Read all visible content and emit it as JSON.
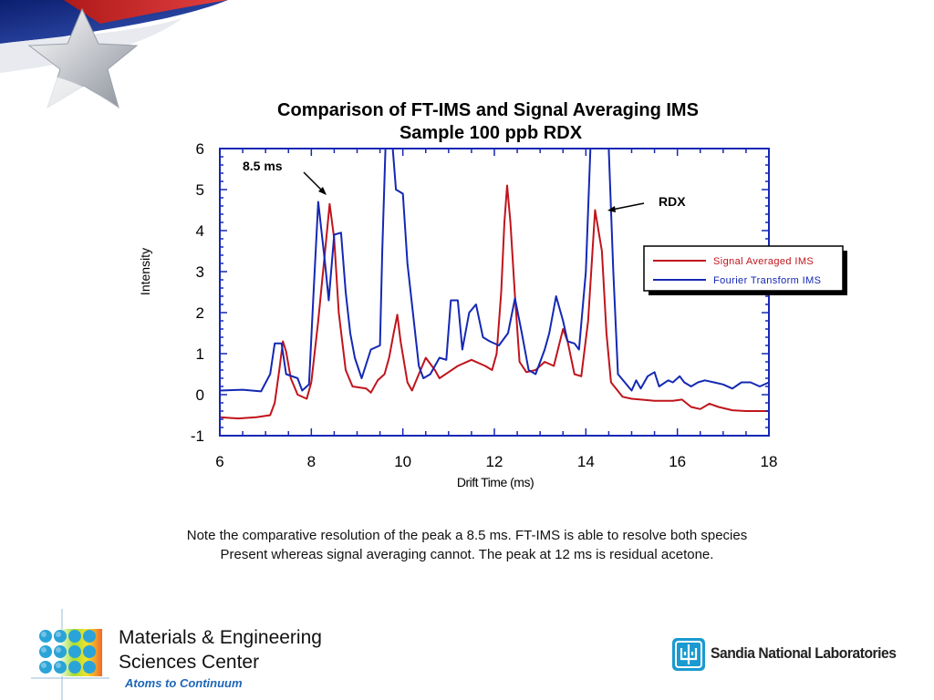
{
  "chart_data": {
    "type": "line",
    "title": "Comparison of FT-IMS and Signal Averaging IMS",
    "subtitle": "Sample 100 ppb RDX",
    "xlabel": "Drift Time (ms)",
    "ylabel": "Intensity",
    "xlim": [
      6,
      18
    ],
    "ylim": [
      -1,
      6
    ],
    "x_ticks": [
      "6",
      "8",
      "10",
      "12",
      "14",
      "16",
      "18"
    ],
    "y_ticks": [
      "6",
      "5",
      "4",
      "3",
      "2",
      "1",
      "0",
      "-1"
    ],
    "grid": false,
    "legend_position": "right",
    "annotations": [
      {
        "text": "8.5 ms",
        "x": 8.4,
        "y": 4.7
      },
      {
        "text": "RDX",
        "x": 14.5,
        "y": 4.6
      }
    ],
    "series": [
      {
        "name": "Signal Averaged IMS",
        "color": "#c0141c",
        "points": [
          [
            6.0,
            -0.55
          ],
          [
            6.4,
            -0.58
          ],
          [
            6.8,
            -0.55
          ],
          [
            7.1,
            -0.5
          ],
          [
            7.2,
            -0.2
          ],
          [
            7.3,
            0.6
          ],
          [
            7.38,
            1.3
          ],
          [
            7.45,
            1.05
          ],
          [
            7.55,
            0.4
          ],
          [
            7.7,
            0.0
          ],
          [
            7.9,
            -0.1
          ],
          [
            8.0,
            0.3
          ],
          [
            8.15,
            1.8
          ],
          [
            8.3,
            3.5
          ],
          [
            8.4,
            4.65
          ],
          [
            8.5,
            3.8
          ],
          [
            8.6,
            2.0
          ],
          [
            8.75,
            0.6
          ],
          [
            8.9,
            0.2
          ],
          [
            9.2,
            0.15
          ],
          [
            9.3,
            0.05
          ],
          [
            9.45,
            0.35
          ],
          [
            9.6,
            0.5
          ],
          [
            9.7,
            0.9
          ],
          [
            9.8,
            1.5
          ],
          [
            9.88,
            1.95
          ],
          [
            9.95,
            1.3
          ],
          [
            10.1,
            0.3
          ],
          [
            10.2,
            0.1
          ],
          [
            10.35,
            0.5
          ],
          [
            10.5,
            0.9
          ],
          [
            10.7,
            0.6
          ],
          [
            10.8,
            0.4
          ],
          [
            11.0,
            0.55
          ],
          [
            11.2,
            0.7
          ],
          [
            11.5,
            0.85
          ],
          [
            11.8,
            0.7
          ],
          [
            11.95,
            0.6
          ],
          [
            12.05,
            1.0
          ],
          [
            12.15,
            2.5
          ],
          [
            12.22,
            4.2
          ],
          [
            12.28,
            5.1
          ],
          [
            12.35,
            4.2
          ],
          [
            12.45,
            2.4
          ],
          [
            12.55,
            0.8
          ],
          [
            12.7,
            0.55
          ],
          [
            12.9,
            0.6
          ],
          [
            13.1,
            0.8
          ],
          [
            13.3,
            0.7
          ],
          [
            13.5,
            1.6
          ],
          [
            13.6,
            1.3
          ],
          [
            13.75,
            0.5
          ],
          [
            13.9,
            0.45
          ],
          [
            14.05,
            1.8
          ],
          [
            14.2,
            4.5
          ],
          [
            14.35,
            3.5
          ],
          [
            14.45,
            1.5
          ],
          [
            14.55,
            0.3
          ],
          [
            14.8,
            -0.05
          ],
          [
            15.0,
            -0.1
          ],
          [
            15.2,
            -0.12
          ],
          [
            15.5,
            -0.15
          ],
          [
            15.9,
            -0.15
          ],
          [
            16.1,
            -0.12
          ],
          [
            16.3,
            -0.3
          ],
          [
            16.5,
            -0.35
          ],
          [
            16.7,
            -0.22
          ],
          [
            16.9,
            -0.3
          ],
          [
            17.2,
            -0.38
          ],
          [
            17.5,
            -0.4
          ],
          [
            18.0,
            -0.4
          ]
        ]
      },
      {
        "name": "Fourier Transform IMS",
        "color": "#1428b4",
        "points": [
          [
            6.0,
            0.1
          ],
          [
            6.5,
            0.12
          ],
          [
            6.9,
            0.08
          ],
          [
            7.1,
            0.5
          ],
          [
            7.2,
            1.25
          ],
          [
            7.35,
            1.25
          ],
          [
            7.45,
            0.5
          ],
          [
            7.7,
            0.4
          ],
          [
            7.8,
            0.1
          ],
          [
            7.95,
            0.25
          ],
          [
            8.05,
            2.5
          ],
          [
            8.15,
            4.7
          ],
          [
            8.3,
            3.2
          ],
          [
            8.38,
            2.3
          ],
          [
            8.5,
            3.9
          ],
          [
            8.65,
            3.95
          ],
          [
            8.75,
            2.5
          ],
          [
            8.85,
            1.5
          ],
          [
            8.95,
            0.9
          ],
          [
            9.1,
            0.4
          ],
          [
            9.3,
            1.1
          ],
          [
            9.5,
            1.2
          ],
          [
            9.55,
            3.5
          ],
          [
            9.62,
            6.0
          ],
          [
            9.78,
            6.0
          ],
          [
            9.85,
            5.0
          ],
          [
            10.0,
            4.9
          ],
          [
            10.1,
            3.2
          ],
          [
            10.2,
            2.2
          ],
          [
            10.35,
            0.7
          ],
          [
            10.45,
            0.4
          ],
          [
            10.6,
            0.5
          ],
          [
            10.8,
            0.9
          ],
          [
            10.95,
            0.85
          ],
          [
            11.05,
            2.3
          ],
          [
            11.2,
            2.3
          ],
          [
            11.3,
            1.1
          ],
          [
            11.45,
            2.0
          ],
          [
            11.6,
            2.2
          ],
          [
            11.75,
            1.4
          ],
          [
            11.9,
            1.3
          ],
          [
            12.1,
            1.2
          ],
          [
            12.3,
            1.5
          ],
          [
            12.45,
            2.35
          ],
          [
            12.6,
            1.5
          ],
          [
            12.75,
            0.6
          ],
          [
            12.9,
            0.5
          ],
          [
            13.1,
            1.1
          ],
          [
            13.2,
            1.5
          ],
          [
            13.35,
            2.4
          ],
          [
            13.5,
            1.8
          ],
          [
            13.6,
            1.3
          ],
          [
            13.75,
            1.25
          ],
          [
            13.85,
            1.1
          ],
          [
            14.0,
            3.0
          ],
          [
            14.1,
            6.0
          ],
          [
            14.5,
            6.0
          ],
          [
            14.6,
            3.0
          ],
          [
            14.7,
            0.5
          ],
          [
            14.85,
            0.3
          ],
          [
            15.0,
            0.1
          ],
          [
            15.1,
            0.35
          ],
          [
            15.2,
            0.15
          ],
          [
            15.35,
            0.45
          ],
          [
            15.5,
            0.55
          ],
          [
            15.6,
            0.2
          ],
          [
            15.8,
            0.35
          ],
          [
            15.9,
            0.3
          ],
          [
            16.05,
            0.45
          ],
          [
            16.15,
            0.3
          ],
          [
            16.3,
            0.2
          ],
          [
            16.45,
            0.3
          ],
          [
            16.6,
            0.35
          ],
          [
            16.8,
            0.3
          ],
          [
            17.0,
            0.25
          ],
          [
            17.2,
            0.15
          ],
          [
            17.4,
            0.3
          ],
          [
            17.6,
            0.3
          ],
          [
            17.8,
            0.2
          ],
          [
            18.0,
            0.3
          ]
        ]
      }
    ]
  },
  "caption_lines": [
    "Note the comparative resolution of the peak a 8.5 ms. FT-IMS is able to resolve both species",
    "Present whereas signal averaging cannot. The peak at 12 ms is residual acetone."
  ],
  "footer": {
    "center_title_line1": "Materials & Engineering",
    "center_title_line2": "Sciences Center",
    "tagline": "Atoms to Continuum",
    "lab_name": "Sandia National Laboratories",
    "left_logo_icon": "colored-dots-grid-icon",
    "right_logo_icon": "sandia-thunderbird-icon"
  },
  "decoration_icon": "texas-star-flag-icon"
}
